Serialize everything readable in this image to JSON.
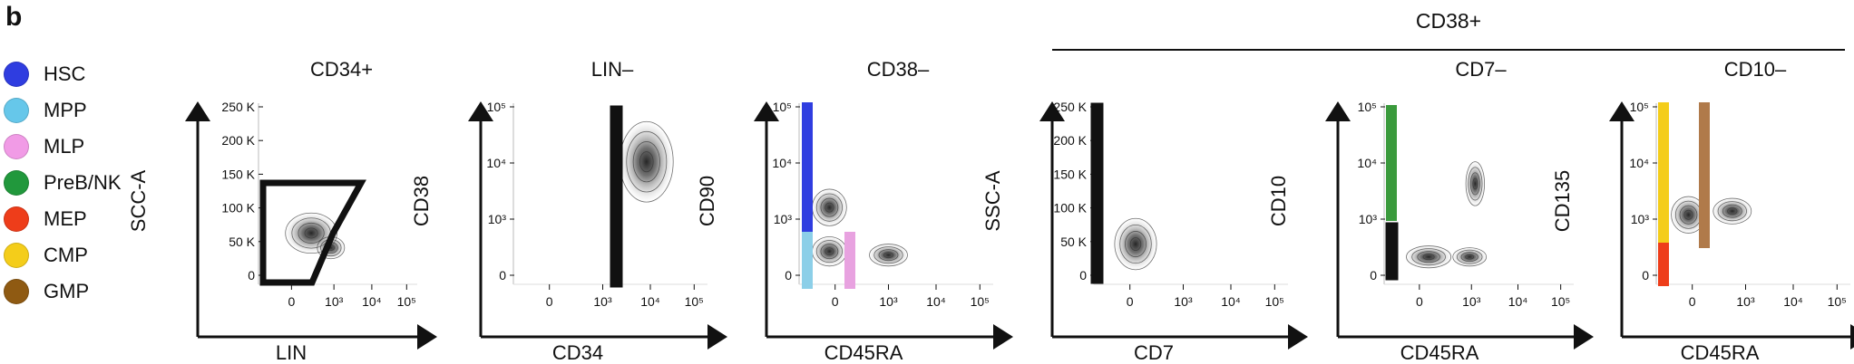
{
  "panel_label": "b",
  "legend": [
    {
      "label": "HSC",
      "color": "#2f3de0"
    },
    {
      "label": "MPP",
      "color": "#66c7ea"
    },
    {
      "label": "MLP",
      "color": "#f19be6"
    },
    {
      "label": "PreB/NK",
      "color": "#21983c"
    },
    {
      "label": "MEP",
      "color": "#ee3d1a"
    },
    {
      "label": "CMP",
      "color": "#f4cd1a"
    },
    {
      "label": "GMP",
      "color": "#8f5a12"
    }
  ],
  "group_header": "CD38+",
  "gate_colors": {
    "black": "#111111",
    "HSC": "#2f3de0",
    "MPP": "#8ccfe8",
    "MLP": "#e8a2e0",
    "PreB/NK": "#3a9a3c",
    "MEP": "#ee3d1a",
    "CMP": "#f4cd1a",
    "GMP": "#b07a4a"
  },
  "plots": [
    {
      "title": "CD34+",
      "xlabel": "LIN",
      "ylabel": "SCC-A",
      "xticks": [
        "0",
        "10³",
        "10⁴",
        "10⁵"
      ],
      "yticks": [
        "0",
        "50 K",
        "100 K",
        "150 K",
        "200 K",
        "250 K"
      ]
    },
    {
      "title": "LIN–",
      "xlabel": "CD34",
      "ylabel": "CD38",
      "xticks": [
        "0",
        "10³",
        "10⁴",
        "10⁵"
      ],
      "yticks": [
        "0",
        "10³",
        "10⁴",
        "10⁵"
      ]
    },
    {
      "title": "CD38–",
      "xlabel": "CD45RA",
      "ylabel": "CD90",
      "xticks": [
        "0",
        "10³",
        "10⁴",
        "10⁵"
      ],
      "yticks": [
        "0",
        "10³",
        "10⁴",
        "10⁵"
      ]
    },
    {
      "title": "",
      "xlabel": "CD7",
      "ylabel": "SSC-A",
      "xticks": [
        "0",
        "10³",
        "10⁴",
        "10⁵"
      ],
      "yticks": [
        "0",
        "50 K",
        "100 K",
        "150 K",
        "200 K",
        "250 K"
      ]
    },
    {
      "title": "CD7–",
      "xlabel": "CD45RA",
      "ylabel": "CD10",
      "xticks": [
        "0",
        "10³",
        "10⁴",
        "10⁵"
      ],
      "yticks": [
        "0",
        "10³",
        "10⁴",
        "10⁵"
      ]
    },
    {
      "title": "CD10–",
      "xlabel": "CD45RA",
      "ylabel": "CD135",
      "xticks": [
        "0",
        "10³",
        "10⁴",
        "10⁵"
      ],
      "yticks": [
        "0",
        "10³",
        "10⁴",
        "10⁵"
      ]
    }
  ]
}
